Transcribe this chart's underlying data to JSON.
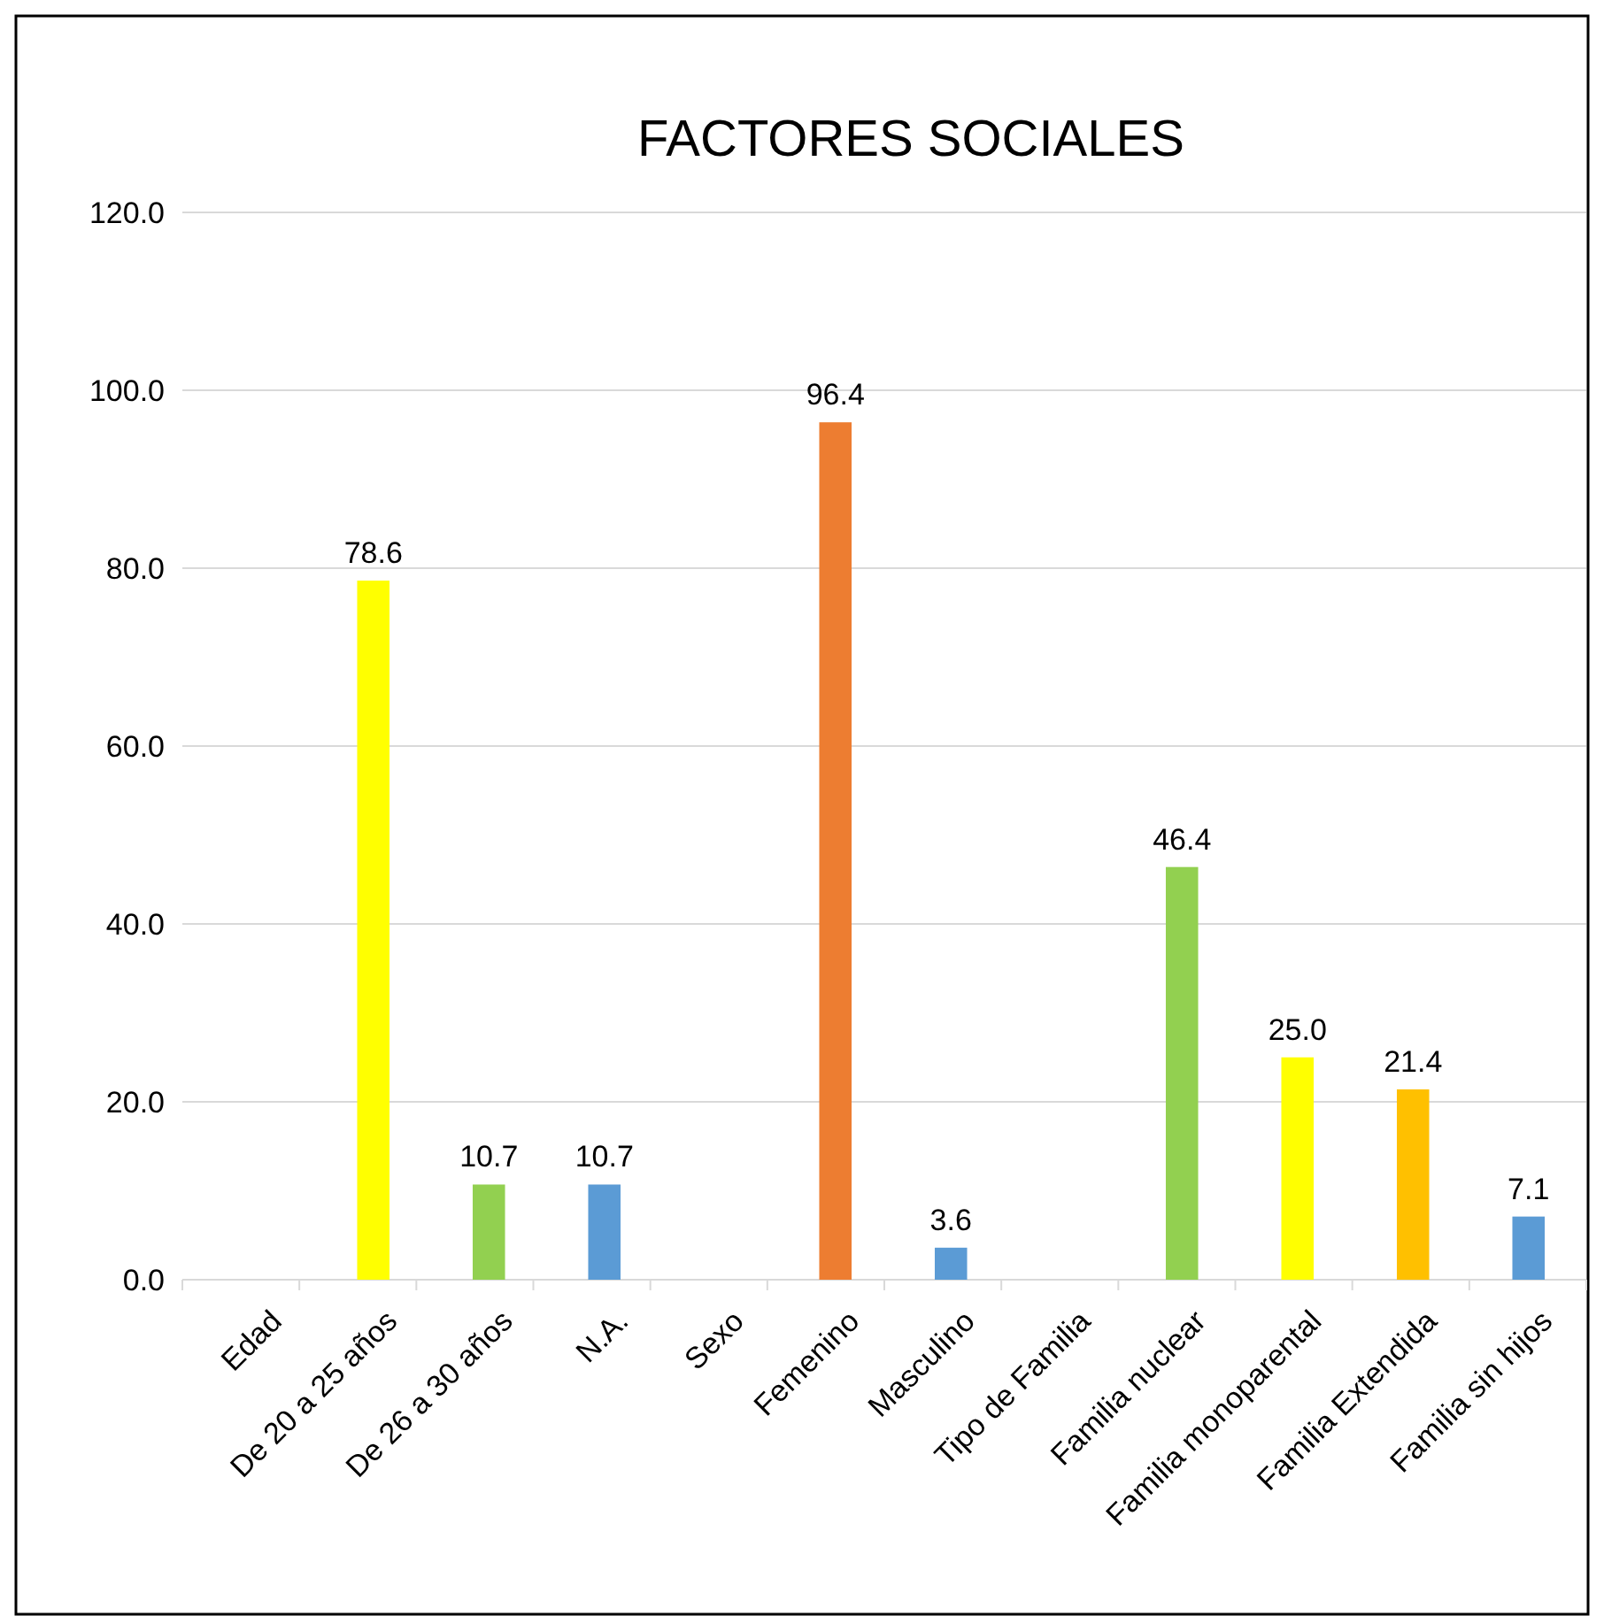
{
  "chart_data": {
    "type": "bar",
    "title": "FACTORES SOCIALES",
    "categories": [
      "Edad",
      "De 20 a 25 años",
      "De 26 a 30 años",
      "N.A.",
      "Sexo",
      "Femenino",
      "Masculino",
      "Tipo de Familia",
      "Familia nuclear",
      "Familia monoparental",
      "Familia Extendida",
      "Familia sin hijos"
    ],
    "values": [
      null,
      78.6,
      10.7,
      10.7,
      null,
      96.4,
      3.6,
      null,
      46.4,
      25.0,
      21.4,
      7.1
    ],
    "colors": [
      null,
      "#ffff00",
      "#92d050",
      "#5b9bd5",
      null,
      "#ed7d31",
      "#5b9bd5",
      null,
      "#92d050",
      "#ffff00",
      "#ffc000",
      "#5b9bd5"
    ],
    "value_labels": [
      null,
      "78.6",
      "10.7",
      "10.7",
      null,
      "96.4",
      "3.6",
      null,
      "46.4",
      "25.0",
      "21.4",
      "7.1"
    ],
    "ylim": [
      0,
      120
    ],
    "yticks": [
      {
        "value": 0,
        "label": "0.0"
      },
      {
        "value": 20,
        "label": "20.0"
      },
      {
        "value": 40,
        "label": "40.0"
      },
      {
        "value": 60,
        "label": "60.0"
      },
      {
        "value": 80,
        "label": "80.0"
      },
      {
        "value": 100,
        "label": "100.0"
      },
      {
        "value": 120,
        "label": "120.0"
      }
    ],
    "grid": "y"
  }
}
